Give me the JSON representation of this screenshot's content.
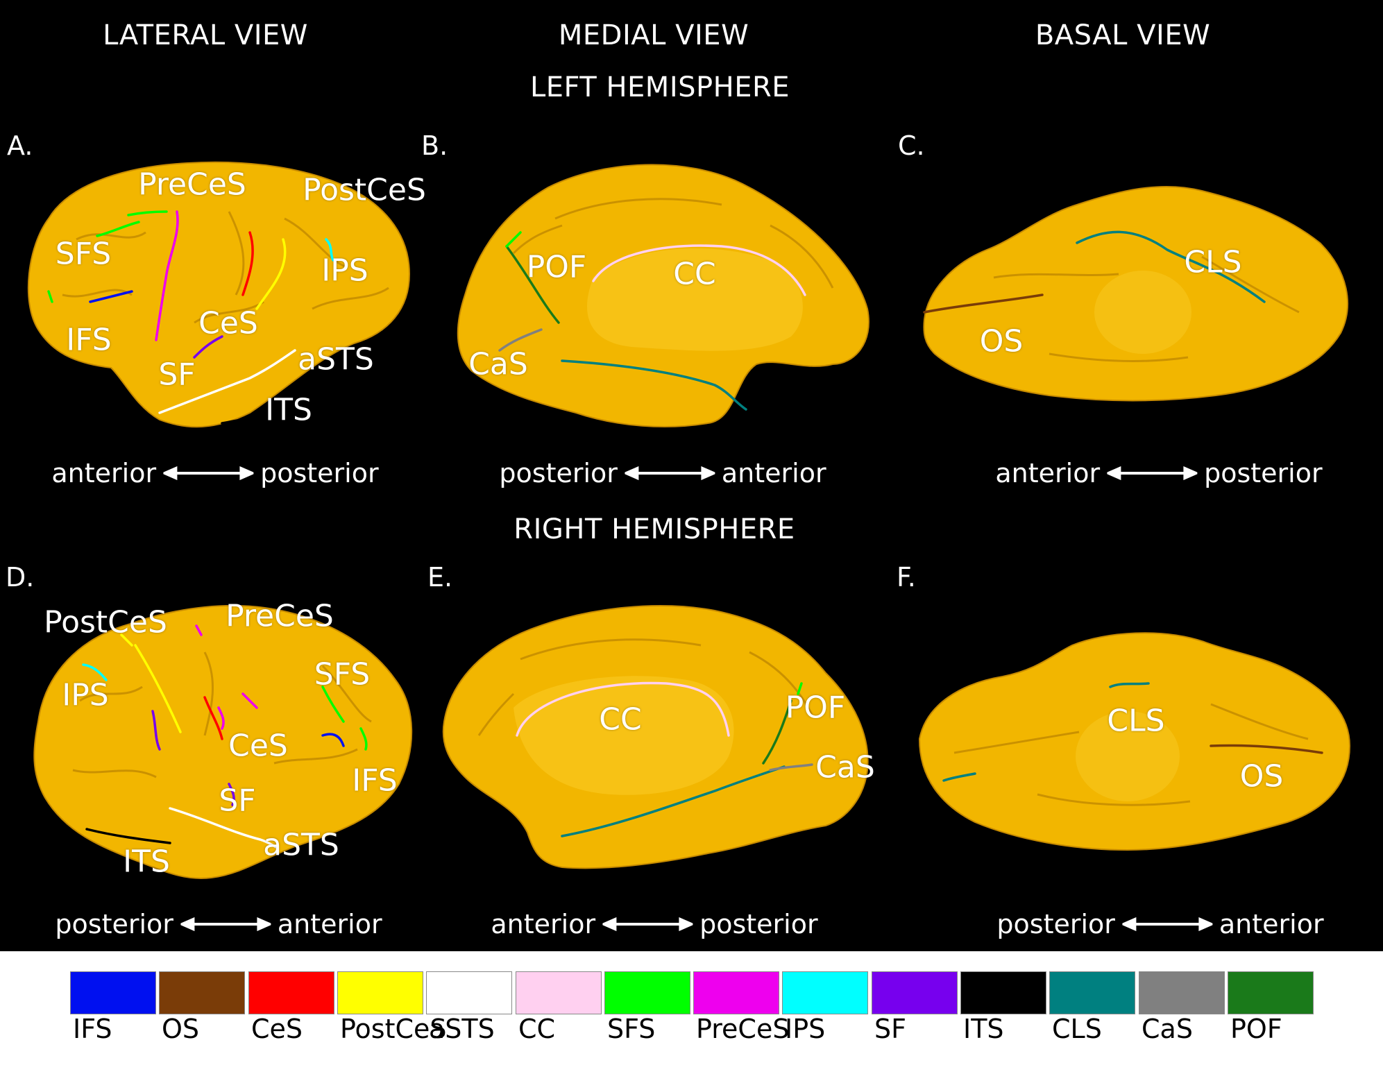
{
  "headers": {
    "lateral": "LATERAL VIEW",
    "medial": "MEDIAL VIEW",
    "basal": "BASAL VIEW",
    "left_hemisphere": "LEFT HEMISPHERE",
    "right_hemisphere": "RIGHT HEMISPHERE"
  },
  "panels": {
    "A": {
      "letter": "A.",
      "labels": [
        "PreCeS",
        "PostCeS",
        "SFS",
        "IPS",
        "IFS",
        "CeS",
        "SF",
        "aSTS",
        "ITS"
      ],
      "dir_left": "anterior",
      "dir_right": "posterior"
    },
    "B": {
      "letter": "B.",
      "labels": [
        "POF",
        "CC",
        "CaS"
      ],
      "dir_left": "posterior",
      "dir_right": "anterior"
    },
    "C": {
      "letter": "C.",
      "labels": [
        "CLS",
        "OS"
      ],
      "dir_left": "anterior",
      "dir_right": "posterior"
    },
    "D": {
      "letter": "D.",
      "labels": [
        "PostCeS",
        "PreCeS",
        "SFS",
        "IPS",
        "CeS",
        "IFS",
        "SF",
        "aSTS",
        "ITS"
      ],
      "dir_left": "posterior",
      "dir_right": "anterior"
    },
    "E": {
      "letter": "E.",
      "labels": [
        "CC",
        "POF",
        "CaS"
      ],
      "dir_left": "anterior",
      "dir_right": "posterior"
    },
    "F": {
      "letter": "F.",
      "labels": [
        "CLS",
        "OS"
      ],
      "dir_left": "posterior",
      "dir_right": "anterior"
    }
  },
  "colors": {
    "brain": "#f2b600",
    "IFS": "#0010f0",
    "OS": "#7a3c08",
    "CeS": "#ff0000",
    "PostCeS": "#ffff00",
    "aSTS": "#ffffff",
    "CC": "#ffd0f0",
    "SFS": "#00ff00",
    "PreCeS": "#ee00ee",
    "IPS": "#00ffff",
    "SF": "#7700ee",
    "ITS": "#000000",
    "CLS": "#008080",
    "CaS": "#808080",
    "POF": "#1a7a1a"
  },
  "legend": [
    {
      "label": "IFS",
      "color": "#0010f0"
    },
    {
      "label": "OS",
      "color": "#7a3c08"
    },
    {
      "label": "CeS",
      "color": "#ff0000"
    },
    {
      "label": "PostCeS",
      "color": "#ffff00"
    },
    {
      "label": "aSTS",
      "color": "#ffffff"
    },
    {
      "label": "CC",
      "color": "#ffd0f0"
    },
    {
      "label": "SFS",
      "color": "#00ff00"
    },
    {
      "label": "PreCeS",
      "color": "#ee00ee"
    },
    {
      "label": "IPS",
      "color": "#00ffff"
    },
    {
      "label": "SF",
      "color": "#7700ee"
    },
    {
      "label": "ITS",
      "color": "#000000"
    },
    {
      "label": "CLS",
      "color": "#008080"
    },
    {
      "label": "CaS",
      "color": "#808080"
    },
    {
      "label": "POF",
      "color": "#1a7a1a"
    }
  ]
}
